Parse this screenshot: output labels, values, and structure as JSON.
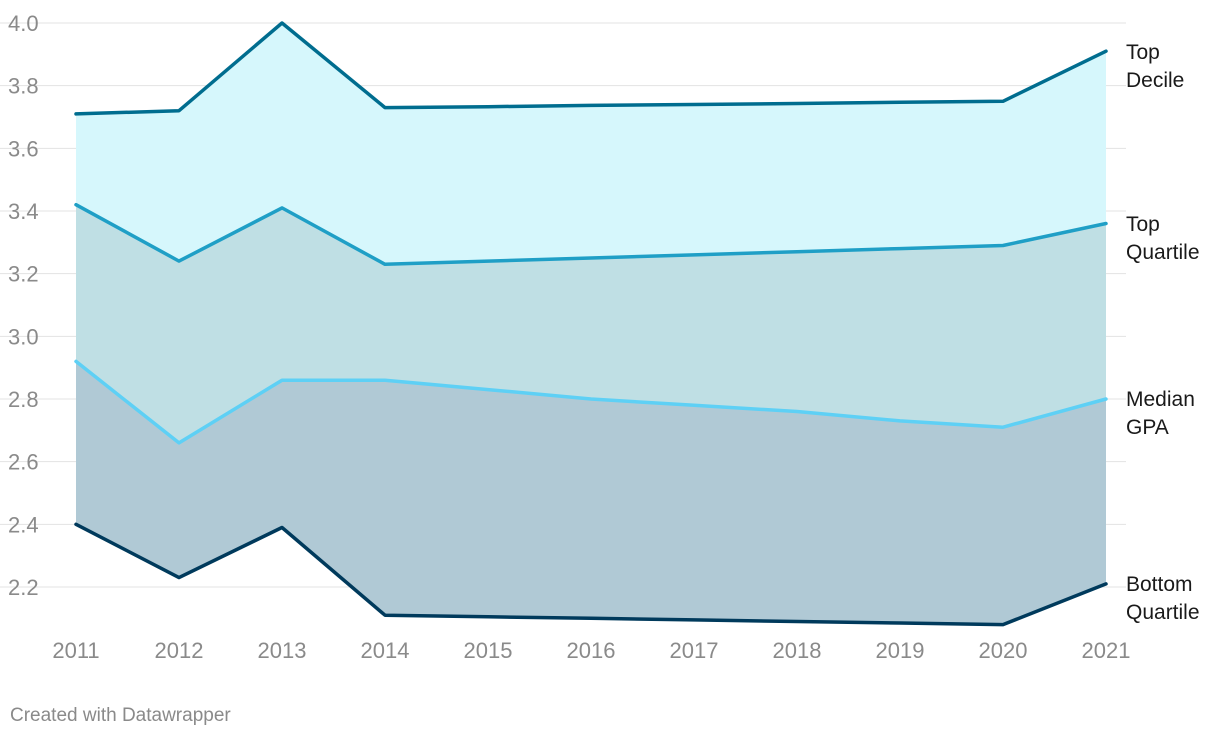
{
  "chart_data": {
    "type": "area",
    "x": [
      2011,
      2012,
      2013,
      2014,
      2015,
      2016,
      2017,
      2018,
      2019,
      2020,
      2021
    ],
    "x_ticks": [
      "2011",
      "2012",
      "2013",
      "2014",
      "2015",
      "2016",
      "2017",
      "2018",
      "2019",
      "2020",
      "2021"
    ],
    "y_ticks": [
      "2.2",
      "2.4",
      "2.6",
      "2.8",
      "3.0",
      "3.2",
      "3.4",
      "3.6",
      "3.8",
      "4.0"
    ],
    "ylim": [
      2.08,
      4.0
    ],
    "grid": true,
    "legend": "line-end labels on the right",
    "series": [
      {
        "name": "Top Decile",
        "label_lines": [
          "Top",
          "Decile"
        ],
        "color": "#006d8f",
        "values": [
          3.71,
          3.72,
          4.0,
          3.73,
          3.733,
          3.737,
          3.74,
          3.743,
          3.747,
          3.75,
          3.91
        ]
      },
      {
        "name": "Top Quartile",
        "label_lines": [
          "Top",
          "Quartile"
        ],
        "color": "#1f9fc6",
        "values": [
          3.42,
          3.24,
          3.41,
          3.23,
          3.24,
          3.25,
          3.26,
          3.27,
          3.28,
          3.29,
          3.36
        ]
      },
      {
        "name": "Median GPA",
        "label_lines": [
          "Median",
          "GPA"
        ],
        "color": "#5ed0f5",
        "values": [
          2.92,
          2.66,
          2.86,
          2.86,
          2.83,
          2.8,
          2.78,
          2.76,
          2.73,
          2.71,
          2.8
        ]
      },
      {
        "name": "Bottom Quartile",
        "label_lines": [
          "Bottom",
          "Quartile"
        ],
        "color": "#003a5c",
        "values": [
          2.4,
          2.23,
          2.39,
          2.11,
          2.105,
          2.1,
          2.095,
          2.09,
          2.085,
          2.08,
          2.21
        ]
      }
    ],
    "band_colors": [
      "#d6f7fc",
      "#bfdfe4",
      "#b0c9d5"
    ]
  },
  "credit": "Created with Datawrapper"
}
